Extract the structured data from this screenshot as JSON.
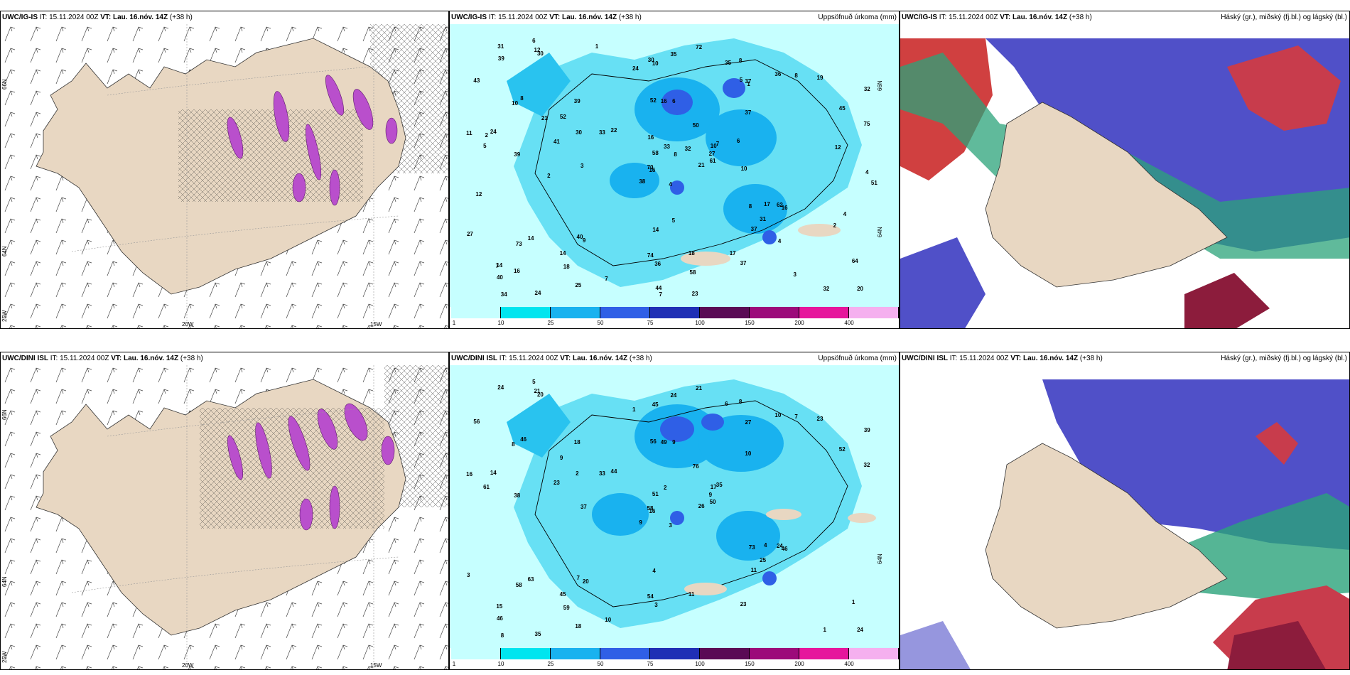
{
  "rows": [
    {
      "model": "UWC/IG-IS",
      "it_label": "IT:",
      "it_value": "15.11.2024 00Z",
      "vt_label": "VT:",
      "vt_value": "Lau. 16.nóv. 14Z",
      "lead": "(+38 h)",
      "precip_title": "Uppsöfnuð úrkoma (mm)",
      "cloud_title": "Háský (gr.), miðský (fj.bl.) og lágský (bl.)",
      "lat_top": "66N",
      "lat_mid": "64N",
      "lat_bot": "25W",
      "lon_a": "20W",
      "lon_b": "15W",
      "precip_mid_lat": "64N",
      "precip_top_lat": "66N"
    },
    {
      "model": "UWC/DINI ISL",
      "it_label": "IT:",
      "it_value": "15.11.2024 00Z",
      "vt_label": "VT:",
      "vt_value": "Lau. 16.nóv. 14Z",
      "lead": "(+38 h)",
      "precip_title": "Uppsöfnuð úrkoma (mm)",
      "cloud_title": "Háský (gr.), miðský (fj.bl.) og lágský (bl.)",
      "lat_top": "66N",
      "lat_mid": "64N",
      "lat_bot": "25W",
      "lon_a": "20W",
      "lon_b": "15W",
      "precip_mid_lat": "64N",
      "precip_top_lat": ""
    }
  ],
  "colorbar": {
    "ticks": [
      "1",
      "10",
      "25",
      "50",
      "75",
      "100",
      "150",
      "200",
      "400"
    ],
    "colors": [
      "#c6ffff",
      "#00e5ef",
      "#19b2ef",
      "#2f5fe6",
      "#1f2fb5",
      "#5a0a55",
      "#9c0a7a",
      "#e6169c",
      "#f5b0ef"
    ]
  },
  "precip_points_row1": [
    "4",
    "10",
    "16",
    "14",
    "10",
    "9",
    "8",
    "6",
    "37",
    "21",
    "30",
    "20",
    "39",
    "32",
    "38",
    "37",
    "24",
    "52",
    "50",
    "14",
    "22",
    "40",
    "18",
    "16",
    "7",
    "16",
    "8",
    "10",
    "5",
    "8",
    "75",
    "70",
    "74",
    "58",
    "39",
    "36",
    "40",
    "32",
    "64",
    "62",
    "72",
    "33",
    "41",
    "37",
    "25",
    "11",
    "27",
    "34",
    "36",
    "61",
    "73",
    "45",
    "43",
    "31",
    "37",
    "14",
    "12",
    "31",
    "18",
    "19",
    "35",
    "3",
    "24",
    "52",
    "8",
    "6",
    "35",
    "24",
    "33",
    "27",
    "14",
    "7",
    "17",
    "30",
    "7",
    "39",
    "21",
    "12",
    "16",
    "58",
    "32",
    "16",
    "10",
    "4",
    "44",
    "12",
    "5",
    "3",
    "23",
    "17",
    "30",
    "51",
    "6",
    "4",
    "8",
    "2",
    "2",
    "7",
    "5",
    "1",
    "2",
    "1",
    "4"
  ],
  "precip_points_row2": [
    "3",
    "8",
    "16",
    "15",
    "17",
    "20",
    "8",
    "9",
    "27",
    "26",
    "20",
    "24",
    "38",
    "39",
    "9",
    "10",
    "35",
    "56",
    "76",
    "63",
    "44",
    "46",
    "59",
    "49",
    "35",
    "46",
    "46",
    "45",
    "61",
    "73",
    "32",
    "58",
    "54",
    "51",
    "18",
    "10",
    "7",
    "1",
    "1",
    "24",
    "21",
    "33",
    "23",
    "11",
    "18",
    "16",
    "9",
    "8",
    "3",
    "50",
    "58",
    "52",
    "56",
    "25",
    "23",
    "45",
    "21",
    "24",
    "11",
    "23",
    "24",
    "37",
    "14",
    "9",
    "7",
    "5",
    "6",
    "1",
    "2",
    "3",
    "4",
    "10",
    "4",
    "2"
  ],
  "icons": {
    "wind_barb": "wind-barb-icon",
    "hatch": "hatch-pattern"
  }
}
